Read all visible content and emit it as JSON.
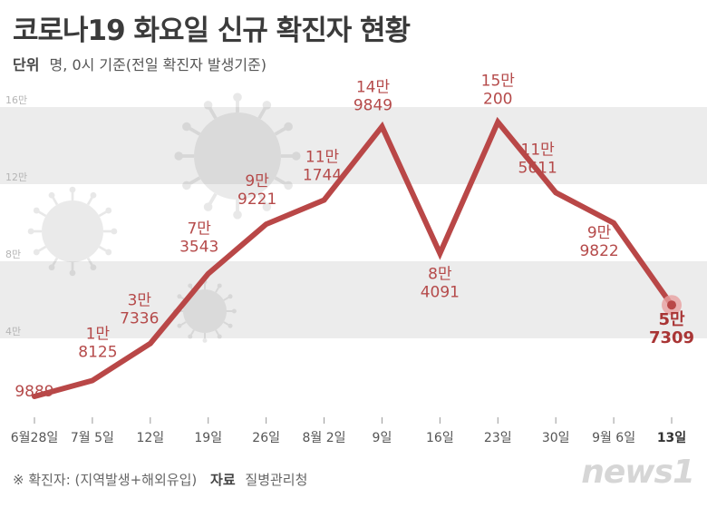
{
  "header": {
    "title": "코로나19 화요일 신규 확진자 현황",
    "unit_label": "단위",
    "unit_text": "명, 0시 기준(전일 확진자 발생기준)"
  },
  "footer": {
    "note": "※ 확진자: (지역발생+해외유입)",
    "source_label": "자료",
    "source_text": "질병관리청",
    "logo_text": "news1"
  },
  "colors": {
    "line": "#b94747",
    "band": "#ececec",
    "highlight": "#e8a0a0"
  },
  "chart_data": {
    "type": "line",
    "title": "코로나19 화요일 신규 확진자 현황",
    "categories": [
      "6월28일",
      "7월 5일",
      "12일",
      "19일",
      "26일",
      "8월 2일",
      "9일",
      "16일",
      "23일",
      "30일",
      "9월 6일",
      "13일"
    ],
    "values": [
      9889,
      18125,
      37336,
      73543,
      99221,
      111744,
      149849,
      84091,
      152200,
      115611,
      99822,
      57309
    ],
    "value_labels": [
      [
        "",
        "9889"
      ],
      [
        "1만",
        "8125"
      ],
      [
        "3만",
        "7336"
      ],
      [
        "7만",
        "3543"
      ],
      [
        "9만",
        "9221"
      ],
      [
        "11만",
        "1744"
      ],
      [
        "14만",
        "9849"
      ],
      [
        "8만",
        "4091"
      ],
      [
        "15만",
        "200"
      ],
      [
        "11만",
        "5611"
      ],
      [
        "9만",
        "9822"
      ],
      [
        "5만",
        "7309"
      ]
    ],
    "y_ticks": [
      {
        "value": 40000,
        "label": "4만"
      },
      {
        "value": 80000,
        "label": "8만"
      },
      {
        "value": 120000,
        "label": "12만"
      },
      {
        "value": 160000,
        "label": "16만"
      }
    ],
    "ylim": [
      0,
      160000
    ],
    "xlabel": "",
    "ylabel": "",
    "grid": "alternating horizontal bands"
  }
}
